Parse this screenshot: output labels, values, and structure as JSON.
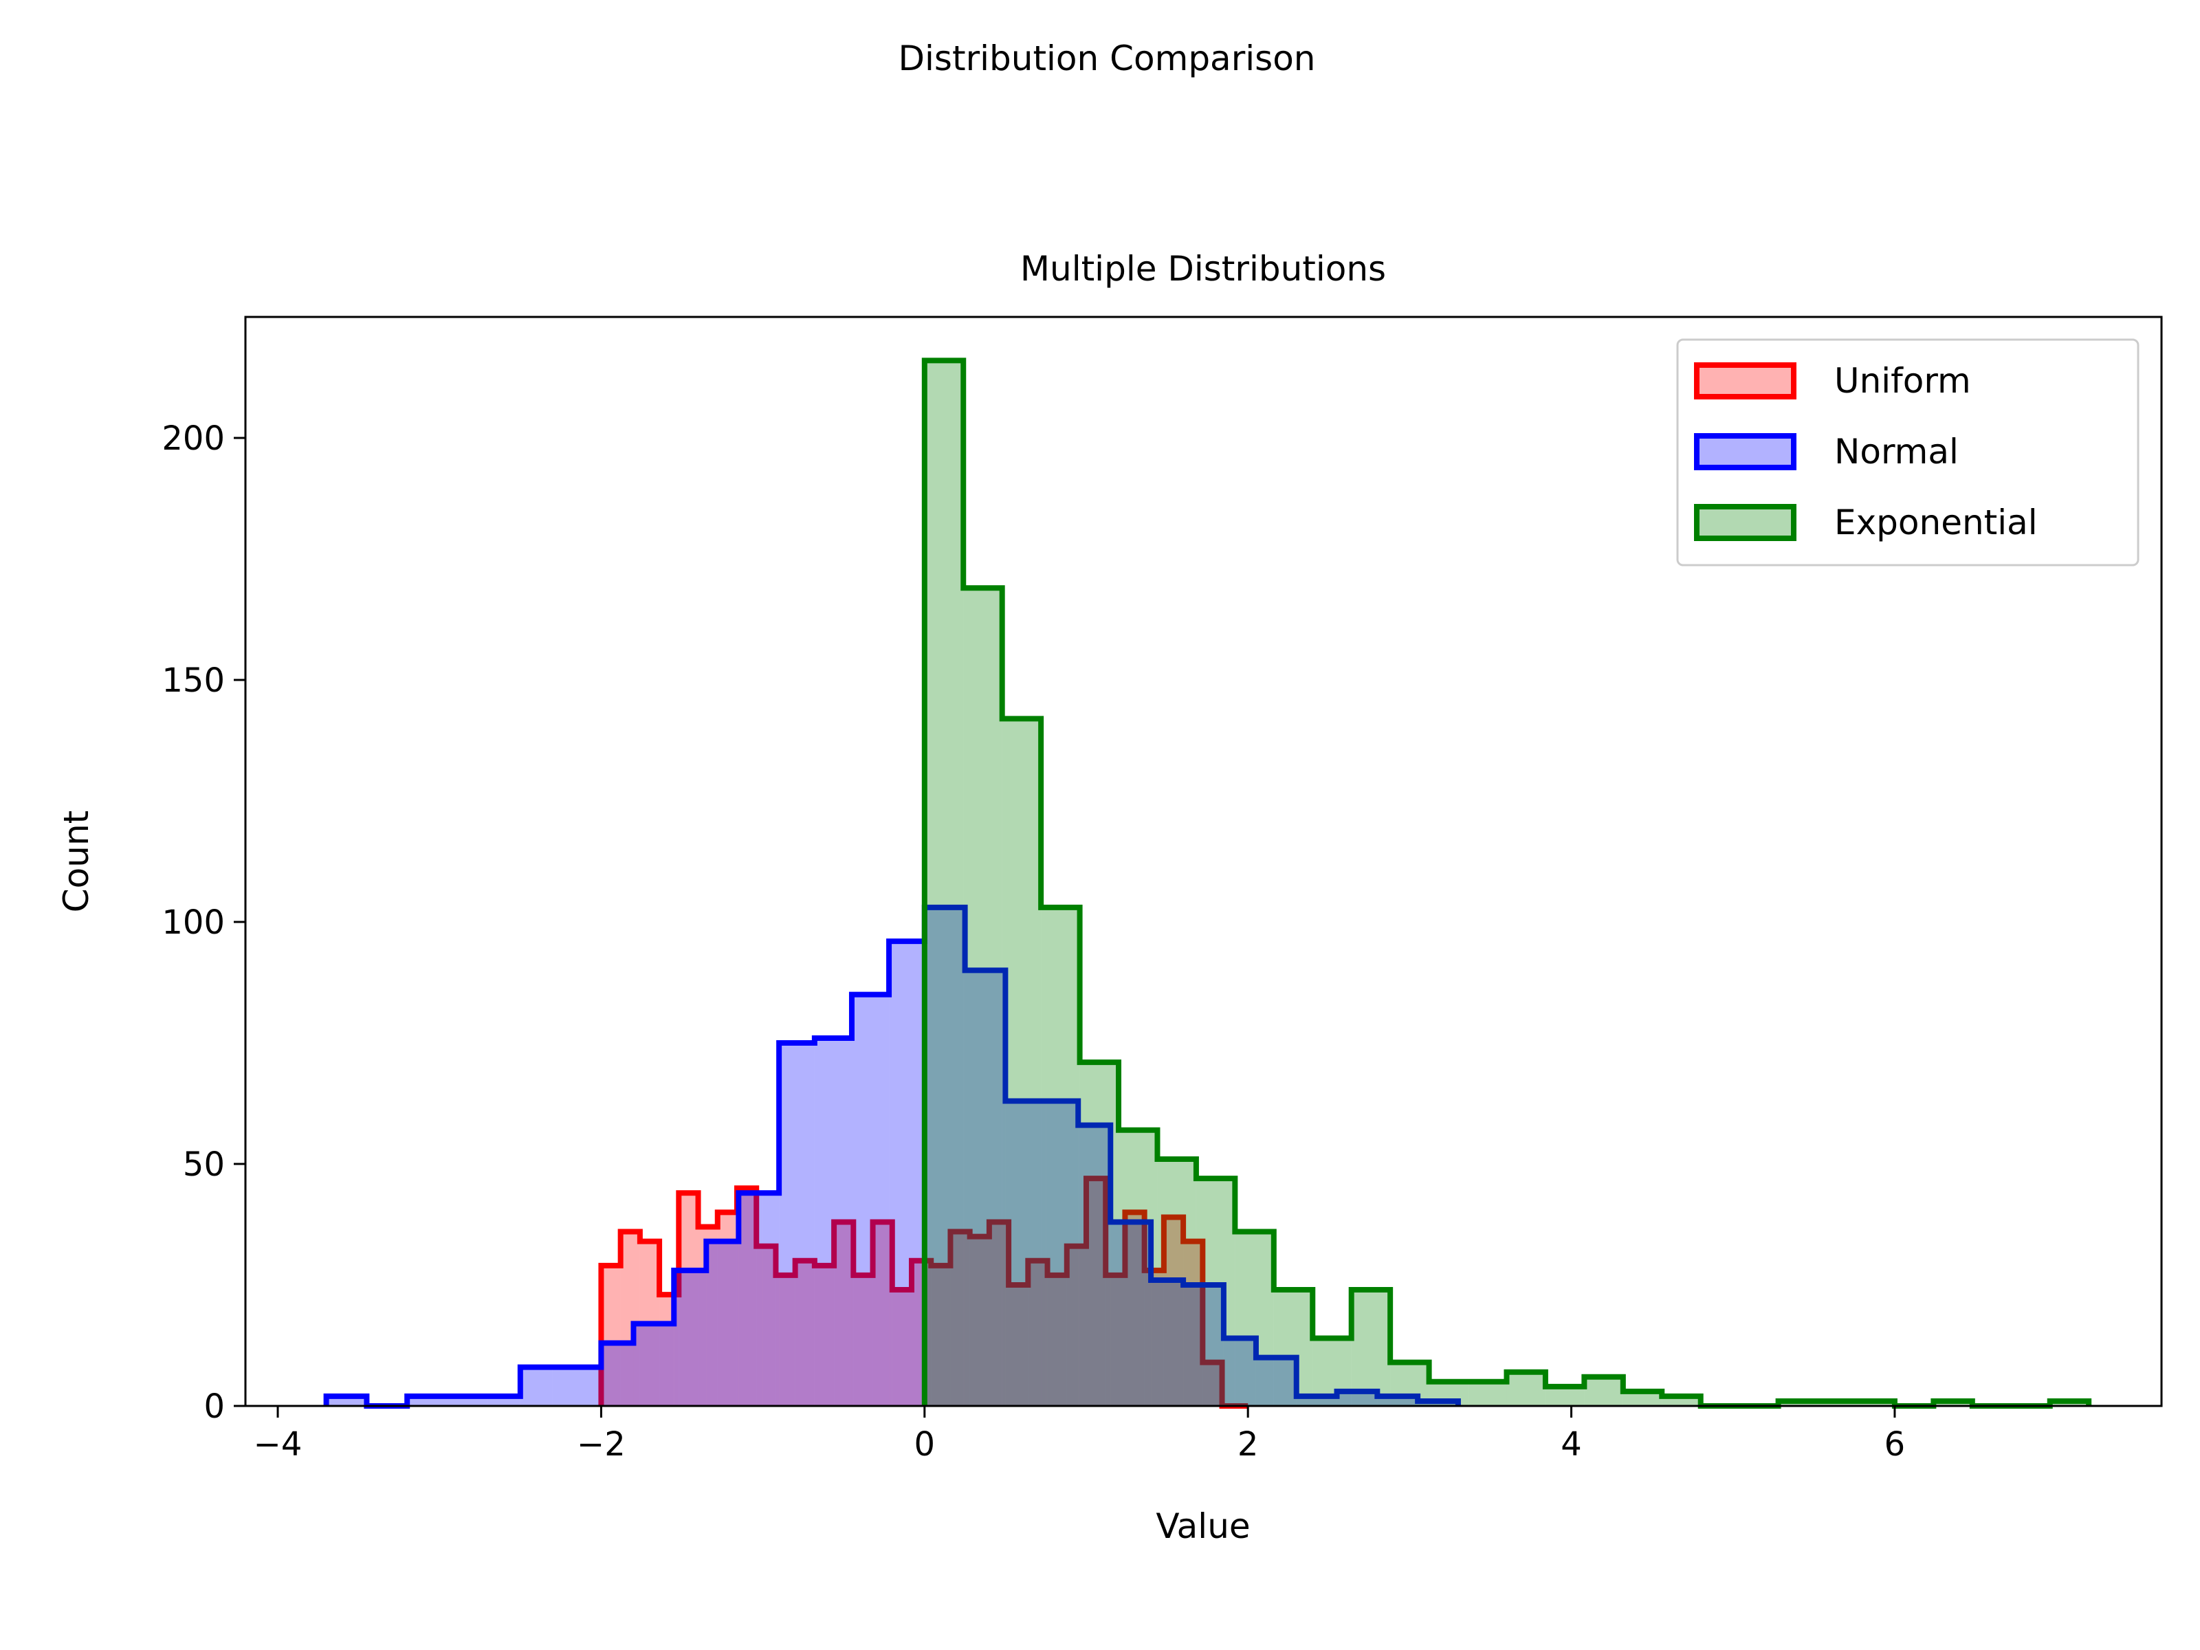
{
  "chart_data": {
    "type": "histogram",
    "suptitle": "Distribution Comparison",
    "title": "Multiple Distributions",
    "xlabel": "Value",
    "ylabel": "Count",
    "xlim": [
      -4.2,
      7.65
    ],
    "ylim": [
      0,
      225
    ],
    "xticks": [
      -4,
      -2,
      0,
      2,
      4,
      6
    ],
    "xtick_labels": [
      "−4",
      "−2",
      "0",
      "2",
      "4",
      "6"
    ],
    "yticks": [
      0,
      50,
      100,
      150,
      200
    ],
    "ytick_labels": [
      "0",
      "50",
      "100",
      "150",
      "200"
    ],
    "grid": false,
    "legend_position": "upper right",
    "series": [
      {
        "name": "Uniform",
        "color": "#ff0000",
        "fill": "#ff0000",
        "fill_opacity": 0.3,
        "edges": [
          -2.0,
          -1.88,
          -1.76,
          -1.64,
          -1.52,
          -1.4,
          -1.28,
          -1.16,
          -1.04,
          -0.92,
          -0.8,
          -0.68,
          -0.56,
          -0.44,
          -0.32,
          -0.2,
          -0.08,
          0.04,
          0.16,
          0.28,
          0.4,
          0.52,
          0.64,
          0.76,
          0.88,
          1.0,
          1.12,
          1.24,
          1.36,
          1.48,
          1.6,
          1.72,
          1.84,
          2.0
        ],
        "counts": [
          29,
          36,
          34,
          23,
          44,
          37,
          40,
          45,
          33,
          27,
          30,
          29,
          38,
          27,
          38,
          24,
          30,
          29,
          36,
          35,
          38,
          25,
          30,
          27,
          33,
          47,
          27,
          40,
          28,
          39,
          34,
          9,
          0
        ]
      },
      {
        "name": "Normal",
        "color": "#0000ff",
        "fill": "#0000ff",
        "fill_opacity": 0.3,
        "edges": [
          -3.7,
          -3.45,
          -3.2,
          -2.95,
          -2.7,
          -2.5,
          -2.3,
          -2.0,
          -1.8,
          -1.55,
          -1.35,
          -1.15,
          -1.0,
          -0.9,
          -0.68,
          -0.45,
          -0.22,
          0.0,
          0.25,
          0.5,
          0.75,
          0.95,
          1.15,
          1.4,
          1.6,
          1.85,
          2.05,
          2.3,
          2.55,
          2.8,
          3.05,
          3.3
        ],
        "counts": [
          2,
          0,
          2,
          2,
          2,
          8,
          8,
          13,
          17,
          28,
          34,
          44,
          44,
          75,
          76,
          85,
          96,
          103,
          90,
          63,
          63,
          58,
          38,
          26,
          25,
          14,
          10,
          2,
          3,
          2,
          1
        ]
      },
      {
        "name": "Exponential",
        "color": "#008000",
        "fill": "#008000",
        "fill_opacity": 0.3,
        "edges": [
          0.0,
          0.24,
          0.48,
          0.72,
          0.96,
          1.2,
          1.44,
          1.68,
          1.92,
          2.16,
          2.4,
          2.64,
          2.88,
          3.12,
          3.36,
          3.6,
          3.84,
          4.08,
          4.32,
          4.56,
          4.8,
          5.04,
          5.28,
          5.52,
          5.76,
          6.0,
          6.24,
          6.48,
          6.72,
          6.96,
          7.2
        ],
        "counts": [
          216,
          169,
          142,
          103,
          71,
          57,
          51,
          47,
          36,
          24,
          14,
          24,
          9,
          5,
          5,
          7,
          4,
          6,
          3,
          2,
          0,
          0,
          1,
          1,
          1,
          0,
          1,
          0,
          0,
          1
        ]
      }
    ]
  }
}
